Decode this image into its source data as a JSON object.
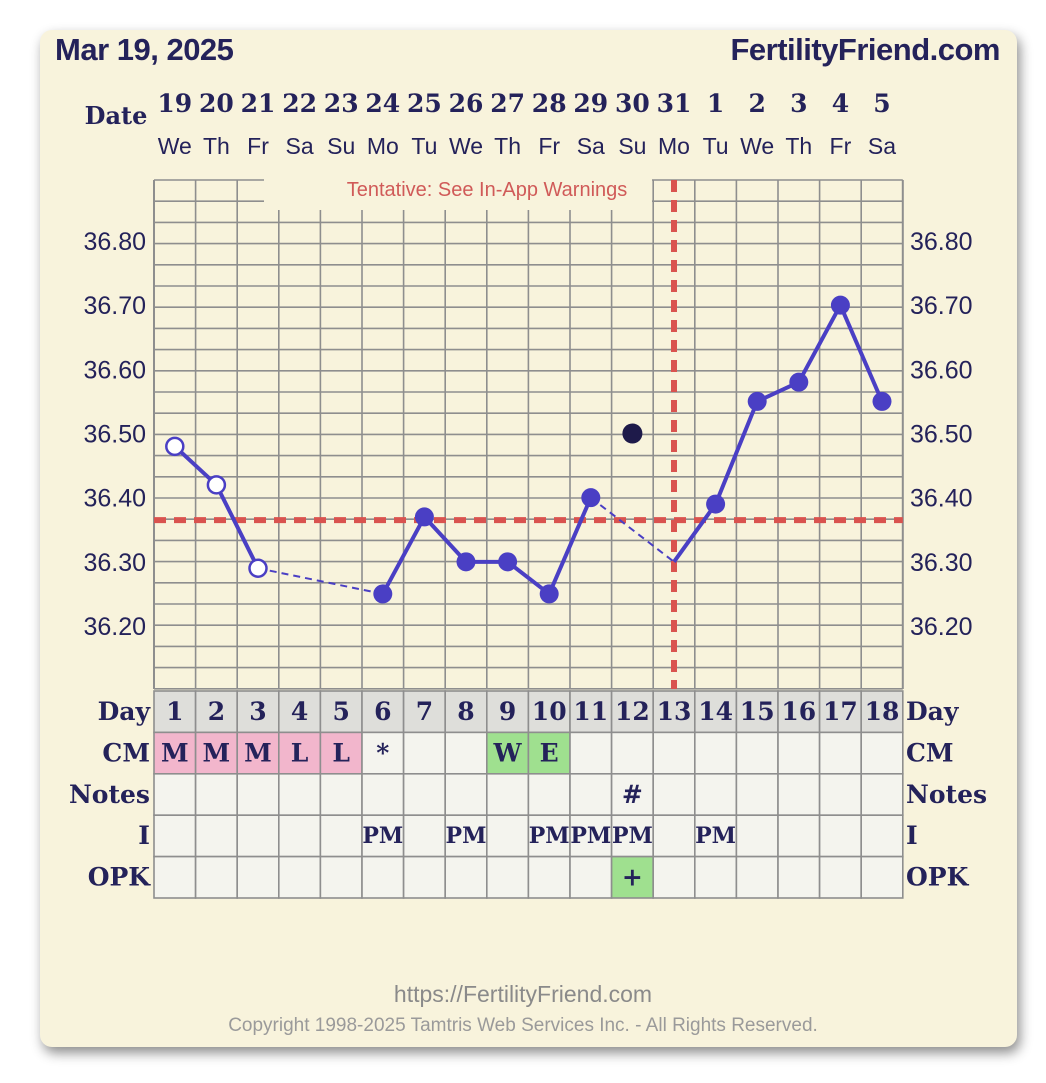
{
  "header": {
    "date": "Mar 19, 2025",
    "brand": "FertilityFriend.com"
  },
  "footer": {
    "url": "https://FertilityFriend.com",
    "copyright": "Copyright 1998-2025 Tamtris Web Services Inc. - All Rights Reserved."
  },
  "colors": {
    "background": "#f8f3dc",
    "line": "#4a3fc4",
    "coverline": "#d9534f",
    "title_text": "#24225a",
    "cm_pink": "#f2b6cc",
    "cm_green": "#9fe08f"
  },
  "chart_data": {
    "type": "line",
    "warning": "Tentative: See In-App Warnings",
    "row_labels": {
      "date": "Date",
      "day": "Day",
      "cm": "CM",
      "notes": "Notes",
      "i": "I",
      "opk": "OPK"
    },
    "dates": [
      "19",
      "20",
      "21",
      "22",
      "23",
      "24",
      "25",
      "26",
      "27",
      "28",
      "29",
      "30",
      "31",
      "1",
      "2",
      "3",
      "4",
      "5"
    ],
    "weekdays": [
      "We",
      "Th",
      "Fr",
      "Sa",
      "Su",
      "Mo",
      "Tu",
      "We",
      "Th",
      "Fr",
      "Sa",
      "Su",
      "Mo",
      "Tu",
      "We",
      "Th",
      "Fr",
      "Sa"
    ],
    "cycle_days": [
      "1",
      "2",
      "3",
      "4",
      "5",
      "6",
      "7",
      "8",
      "9",
      "10",
      "11",
      "12",
      "13",
      "14",
      "15",
      "16",
      "17",
      "18"
    ],
    "y_ticks": [
      "36.80",
      "36.70",
      "36.60",
      "36.50",
      "36.40",
      "36.30",
      "36.20"
    ],
    "ylim": [
      36.11,
      36.91
    ],
    "temperatures": [
      36.48,
      36.42,
      36.29,
      null,
      null,
      36.25,
      36.37,
      36.3,
      36.3,
      36.25,
      36.4,
      null,
      36.3,
      36.39,
      36.55,
      36.58,
      36.7,
      36.55
    ],
    "open_markers": [
      1,
      2,
      3
    ],
    "hidden_markers": [
      13
    ],
    "dashed_segments": [
      [
        3,
        6
      ],
      [
        11,
        13
      ]
    ],
    "discarded_point": {
      "day": 12,
      "temp": 36.5
    },
    "coverline": 36.365,
    "ovulation_day": 13,
    "cm": [
      "M",
      "M",
      "M",
      "L",
      "L",
      "*",
      "",
      "",
      "W",
      "E",
      "",
      "",
      "",
      "",
      "",
      "",
      "",
      ""
    ],
    "notes": [
      "",
      "",
      "",
      "",
      "",
      "",
      "",
      "",
      "",
      "",
      "",
      "#",
      "",
      "",
      "",
      "",
      "",
      ""
    ],
    "intercourse": [
      "",
      "",
      "",
      "",
      "",
      "PM",
      "",
      "PM",
      "",
      "PM",
      "PM",
      "PM",
      "",
      "PM",
      "",
      "",
      "",
      ""
    ],
    "opk": [
      "",
      "",
      "",
      "",
      "",
      "",
      "",
      "",
      "",
      "",
      "",
      "+",
      "",
      "",
      "",
      "",
      "",
      ""
    ]
  }
}
